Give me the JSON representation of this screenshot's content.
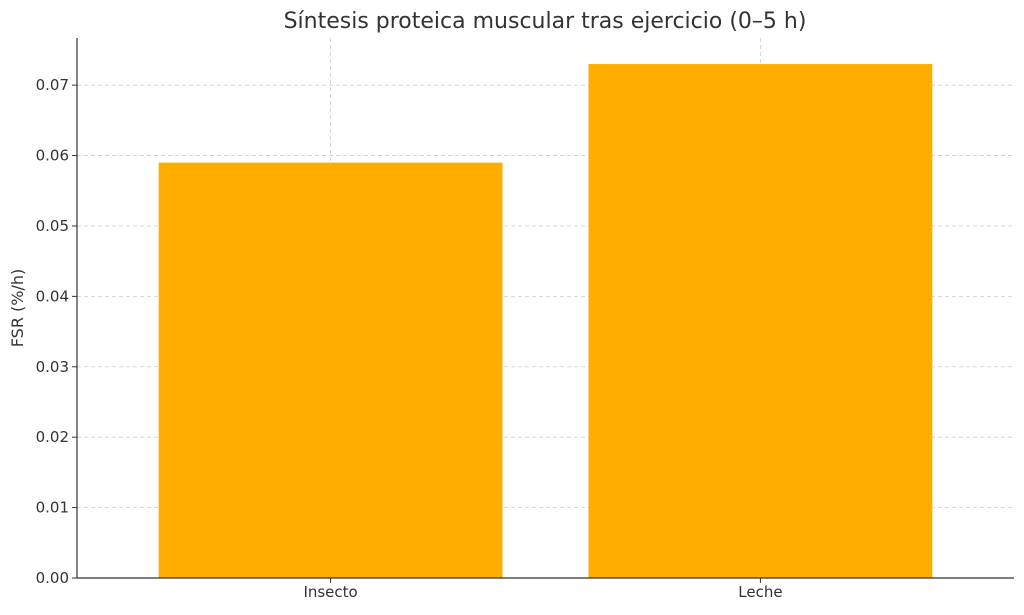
{
  "chart_data": {
    "type": "bar",
    "title": "Síntesis proteica muscular tras ejercicio (0–5 h)",
    "xlabel": "",
    "ylabel": "FSR (%/h)",
    "categories": [
      "Insecto",
      "Leche"
    ],
    "values": [
      0.059,
      0.073
    ],
    "ylim": [
      0,
      0.0767
    ],
    "yticks": [
      "0.00",
      "0.01",
      "0.02",
      "0.03",
      "0.04",
      "0.05",
      "0.06",
      "0.07"
    ],
    "bar_color": "#FFAE00",
    "grid": true,
    "legend": "none"
  }
}
